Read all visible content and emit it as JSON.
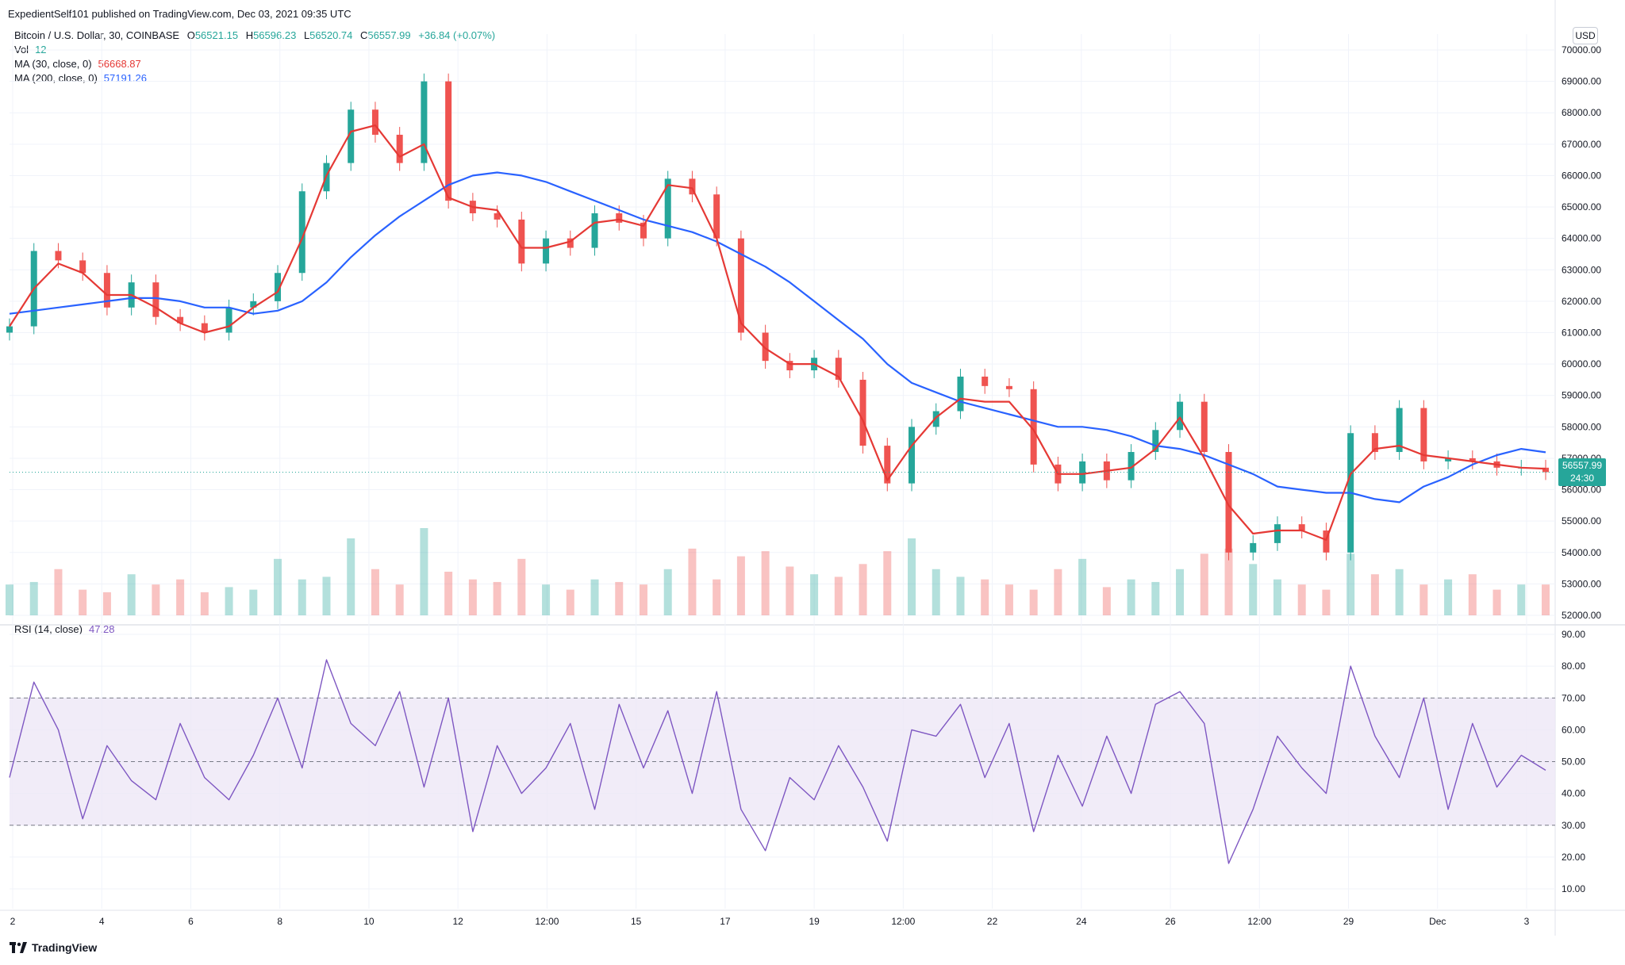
{
  "header": {
    "text": "ExpedientSelf101 published on TradingView.com, Dec 03, 2021 09:35 UTC"
  },
  "legend": {
    "symbol": "Bitcoin / U.S. Dollar, 30, COINBASE",
    "open_label": "O",
    "open": "56521.15",
    "high_label": "H",
    "high": "56596.23",
    "low_label": "L",
    "low": "56520.74",
    "close_label": "C",
    "close": "56557.99",
    "change": "+36.84 (+0.07%)",
    "vol_label": "Vol",
    "vol": "12",
    "ma30_label": "MA (30, close, 0)",
    "ma30": "56668.87",
    "ma200_label": "MA (200, close, 0)",
    "ma200": "57191.26",
    "rsi_label": "RSI (14, close)",
    "rsi": "47.28"
  },
  "currency": "USD",
  "price_tag": {
    "price": "56557.99",
    "countdown": "24:30"
  },
  "footer": {
    "brand": "TradingView"
  },
  "colors": {
    "up": "#26a69a",
    "down": "#ef5350",
    "ma30": "#e53935",
    "ma200": "#2962ff",
    "rsi": "#7e57c2",
    "rsi_band": "#ede7f6",
    "grid": "#f0f3fa"
  },
  "chart_data": [
    {
      "type": "line",
      "title": "Bitcoin / U.S. Dollar, 30, COINBASE",
      "candle_interval": "30",
      "ylim": [
        52000,
        70000
      ],
      "y_ticks": [
        "70000.00",
        "69000.00",
        "68000.00",
        "67000.00",
        "66000.00",
        "65000.00",
        "64000.00",
        "63000.00",
        "62000.00",
        "61000.00",
        "60000.00",
        "59000.00",
        "58000.00",
        "57000.00",
        "56000.00",
        "55000.00",
        "54000.00",
        "53000.00",
        "52000.00"
      ],
      "x_ticks": [
        "2",
        "4",
        "6",
        "8",
        "10",
        "12",
        "12:00",
        "15",
        "17",
        "19",
        "12:00",
        "22",
        "24",
        "26",
        "12:00",
        "29",
        "Dec",
        "3"
      ],
      "series": [
        {
          "name": "Price",
          "x": [
            0,
            0.5,
            1,
            1.5,
            2,
            2.5,
            3,
            3.5,
            4,
            4.5,
            5,
            5.5,
            6,
            6.5,
            7,
            7.5,
            8,
            8.5,
            9,
            9.5,
            10,
            10.5,
            11,
            11.5,
            12,
            12.5,
            13,
            13.5,
            14,
            14.5,
            15,
            15.5,
            16,
            16.5,
            17,
            17.5,
            18,
            18.5,
            19,
            19.5,
            20,
            20.5,
            21,
            21.5,
            22,
            22.5,
            23,
            23.5,
            24,
            24.5,
            25,
            25.5,
            26,
            26.5,
            27,
            27.5,
            28,
            28.5,
            29,
            29.5,
            30,
            30.5,
            31,
            31.5
          ],
          "values": [
            61200,
            63600,
            63300,
            62900,
            61800,
            62600,
            61500,
            61300,
            61000,
            61800,
            62000,
            62900,
            65500,
            66400,
            68100,
            67300,
            66400,
            69000,
            65200,
            64800,
            64600,
            63200,
            64000,
            63700,
            64800,
            64500,
            64000,
            65900,
            65400,
            64000,
            61000,
            60100,
            59800,
            60200,
            59500,
            57400,
            56200,
            58000,
            58500,
            59600,
            59300,
            59200,
            56800,
            56200,
            56900,
            56300,
            57200,
            57900,
            58800,
            57200,
            54000,
            54300,
            54900,
            54700,
            54000,
            57800,
            57200,
            58600,
            56900,
            57000,
            56900,
            56700,
            56700,
            56557.99
          ]
        },
        {
          "name": "MA (30, close, 0)",
          "x": [
            0,
            0.5,
            1,
            1.5,
            2,
            2.5,
            3,
            3.5,
            4,
            4.5,
            5,
            5.5,
            6,
            6.5,
            7,
            7.5,
            8,
            8.5,
            9,
            9.5,
            10,
            10.5,
            11,
            11.5,
            12,
            12.5,
            13,
            13.5,
            14,
            14.5,
            15,
            15.5,
            16,
            16.5,
            17,
            17.5,
            18,
            18.5,
            19,
            19.5,
            20,
            20.5,
            21,
            21.5,
            22,
            22.5,
            23,
            23.5,
            24,
            24.5,
            25,
            25.5,
            26,
            26.5,
            27,
            27.5,
            28,
            28.5,
            29,
            29.5,
            30,
            30.5,
            31,
            31.5
          ],
          "values": [
            61200,
            62400,
            63200,
            62900,
            62200,
            62200,
            61800,
            61300,
            61000,
            61200,
            61800,
            62300,
            64000,
            66000,
            67400,
            67600,
            66600,
            67000,
            65300,
            65000,
            64900,
            63700,
            63700,
            63900,
            64500,
            64600,
            64400,
            65700,
            65600,
            64000,
            61300,
            60500,
            60000,
            60000,
            59600,
            58200,
            56300,
            57400,
            58300,
            58900,
            58800,
            58800,
            57900,
            56500,
            56500,
            56600,
            56700,
            57300,
            58300,
            57000,
            55500,
            54600,
            54700,
            54700,
            54400,
            56500,
            57300,
            57400,
            57100,
            57000,
            56900,
            56800,
            56700,
            56668.87
          ]
        },
        {
          "name": "MA (200, close, 0)",
          "x": [
            0,
            0.5,
            1,
            1.5,
            2,
            2.5,
            3,
            3.5,
            4,
            4.5,
            5,
            5.5,
            6,
            6.5,
            7,
            7.5,
            8,
            8.5,
            9,
            9.5,
            10,
            10.5,
            11,
            11.5,
            12,
            12.5,
            13,
            13.5,
            14,
            14.5,
            15,
            15.5,
            16,
            16.5,
            17,
            17.5,
            18,
            18.5,
            19,
            19.5,
            20,
            20.5,
            21,
            21.5,
            22,
            22.5,
            23,
            23.5,
            24,
            24.5,
            25,
            25.5,
            26,
            26.5,
            27,
            27.5,
            28,
            28.5,
            29,
            29.5,
            30,
            30.5,
            31,
            31.5
          ],
          "values": [
            61600,
            61700,
            61800,
            61900,
            62000,
            62100,
            62100,
            62000,
            61800,
            61800,
            61600,
            61700,
            62000,
            62600,
            63400,
            64100,
            64700,
            65200,
            65700,
            66000,
            66100,
            66000,
            65800,
            65500,
            65200,
            64900,
            64600,
            64400,
            64200,
            63900,
            63500,
            63100,
            62600,
            62000,
            61400,
            60800,
            60000,
            59400,
            59100,
            58800,
            58600,
            58400,
            58200,
            58000,
            58000,
            57900,
            57700,
            57400,
            57300,
            57100,
            56800,
            56500,
            56100,
            56000,
            55900,
            55900,
            55700,
            55600,
            56100,
            56400,
            56800,
            57100,
            57300,
            57191.26
          ]
        }
      ],
      "volume": {
        "label": "Vol",
        "values": [
          12,
          13,
          18,
          10,
          9,
          16,
          12,
          14,
          9,
          11,
          10,
          22,
          14,
          15,
          30,
          18,
          12,
          34,
          17,
          14,
          13,
          22,
          12,
          10,
          14,
          13,
          12,
          18,
          26,
          14,
          23,
          25,
          19,
          16,
          15,
          20,
          25,
          30,
          18,
          15,
          14,
          12,
          10,
          18,
          22,
          11,
          14,
          13,
          18,
          24,
          26,
          20,
          14,
          12,
          10,
          24,
          16,
          18,
          12,
          14,
          16,
          10,
          12,
          12
        ]
      }
    },
    {
      "type": "line",
      "title": "RSI (14, close)",
      "ylim": [
        0,
        95
      ],
      "y_ticks": [
        "90.00",
        "80.00",
        "70.00",
        "60.00",
        "50.00",
        "40.00",
        "30.00",
        "20.00",
        "10.00"
      ],
      "band": [
        30,
        70
      ],
      "midline": 50,
      "series": [
        {
          "name": "RSI (14, close)",
          "x": [
            0,
            0.5,
            1,
            1.5,
            2,
            2.5,
            3,
            3.5,
            4,
            4.5,
            5,
            5.5,
            6,
            6.5,
            7,
            7.5,
            8,
            8.5,
            9,
            9.5,
            10,
            10.5,
            11,
            11.5,
            12,
            12.5,
            13,
            13.5,
            14,
            14.5,
            15,
            15.5,
            16,
            16.5,
            17,
            17.5,
            18,
            18.5,
            19,
            19.5,
            20,
            20.5,
            21,
            21.5,
            22,
            22.5,
            23,
            23.5,
            24,
            24.5,
            25,
            25.5,
            26,
            26.5,
            27,
            27.5,
            28,
            28.5,
            29,
            29.5,
            30,
            30.5,
            31,
            31.5
          ],
          "values": [
            45,
            75,
            60,
            32,
            55,
            44,
            38,
            62,
            45,
            38,
            52,
            70,
            48,
            82,
            62,
            55,
            72,
            42,
            70,
            28,
            55,
            40,
            48,
            62,
            35,
            68,
            48,
            66,
            40,
            72,
            35,
            22,
            45,
            38,
            55,
            42,
            25,
            60,
            58,
            68,
            45,
            62,
            28,
            52,
            36,
            58,
            40,
            68,
            72,
            62,
            18,
            35,
            58,
            48,
            40,
            80,
            58,
            45,
            70,
            35,
            62,
            42,
            52,
            47.28
          ]
        }
      ]
    }
  ]
}
